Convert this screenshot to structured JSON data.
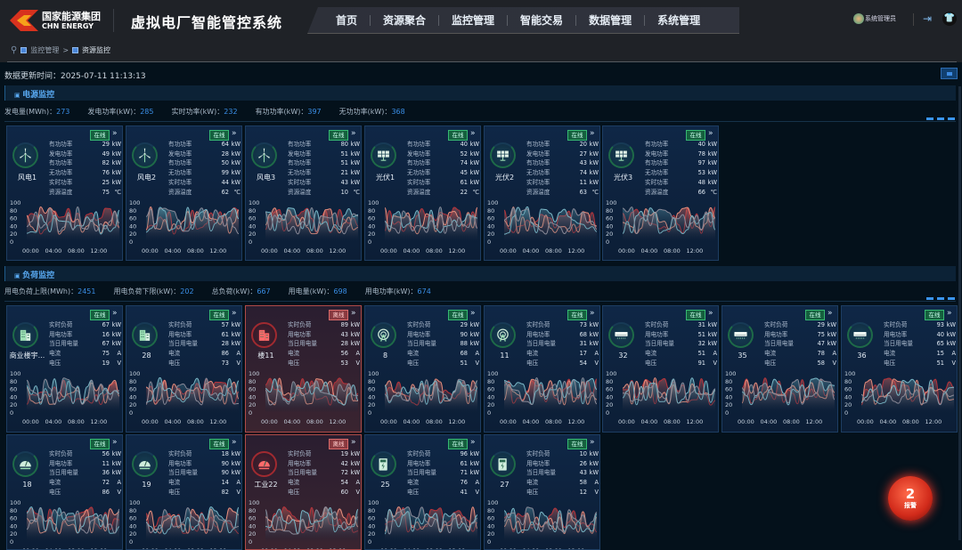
{
  "header": {
    "logo_cn": "国家能源集团",
    "logo_en": "CHN ENERGY",
    "title": "虚拟电厂智能管控系统",
    "nav": [
      "首页",
      "资源聚合",
      "监控管理",
      "智能交易",
      "数据管理",
      "系统管理"
    ],
    "user": "系统管理员"
  },
  "breadcrumb": [
    "监控管理",
    "资源监控"
  ],
  "breadcrumb_sep": ">",
  "update_time": "数据更新时间：2025-07-11 11:13:13",
  "colors": {
    "online": "#15603e",
    "offline": "#8a3a40",
    "accent": "#3a8ee6"
  },
  "chart_axis": {
    "y_ticks": [
      "100",
      "80",
      "60",
      "40",
      "20",
      "0"
    ],
    "x_ticks": [
      "00:00",
      "04:00",
      "08:00",
      "12:00"
    ]
  },
  "power": {
    "title": "电源监控",
    "summary": [
      {
        "label": "发电量(MWh)：",
        "value": "273"
      },
      {
        "label": "发电功率(kW)：",
        "value": "285"
      },
      {
        "label": "实时功率(kW)：",
        "value": "232"
      },
      {
        "label": "有功功率(kW)：",
        "value": "397"
      },
      {
        "label": "无功功率(kW)：",
        "value": "368"
      }
    ],
    "labels": [
      "有功功率",
      "发电功率",
      "有功功率",
      "无功功率",
      "实时功率",
      "资源温度"
    ],
    "units": [
      "kW",
      "kW",
      "kW",
      "kW",
      "kW",
      "℃"
    ],
    "cards": [
      {
        "name": "风电1",
        "icon": "wind-turbine",
        "status": "在线",
        "values": [
          "29",
          "49",
          "82",
          "76",
          "25",
          "75"
        ]
      },
      {
        "name": "风电2",
        "icon": "wind-turbine",
        "status": "在线",
        "values": [
          "64",
          "28",
          "50",
          "99",
          "44",
          "62"
        ]
      },
      {
        "name": "风电3",
        "icon": "wind-turbine",
        "status": "在线",
        "values": [
          "80",
          "51",
          "51",
          "21",
          "43",
          "10"
        ]
      },
      {
        "name": "光伏1",
        "icon": "solar-panel",
        "status": "在线",
        "values": [
          "40",
          "52",
          "74",
          "45",
          "61",
          "22"
        ]
      },
      {
        "name": "光伏2",
        "icon": "solar-panel",
        "status": "在线",
        "values": [
          "20",
          "27",
          "43",
          "74",
          "11",
          "63"
        ]
      },
      {
        "name": "光伏3",
        "icon": "solar-panel",
        "status": "在线",
        "values": [
          "40",
          "78",
          "97",
          "53",
          "48",
          "66"
        ]
      }
    ]
  },
  "load": {
    "title": "负荷监控",
    "summary": [
      {
        "label": "用电负荷上限(MWh)：",
        "value": "2451"
      },
      {
        "label": "用电负荷下限(kW)：",
        "value": "202"
      },
      {
        "label": "总负荷(kW)：",
        "value": "667"
      },
      {
        "label": "用电量(kW)：",
        "value": "698"
      },
      {
        "label": "用电功率(kW)：",
        "value": "674"
      }
    ],
    "labels": [
      "实时负荷",
      "用电功率",
      "当日用电量",
      "电流",
      "电压"
    ],
    "units": [
      "kW",
      "kW",
      "kW",
      "A",
      "V"
    ],
    "cards": [
      {
        "name": "商业楼宇...",
        "icon": "building",
        "status": "在线",
        "values": [
          "67",
          "16",
          "67",
          "75",
          "19"
        ]
      },
      {
        "name": "28",
        "icon": "building",
        "status": "在线",
        "values": [
          "57",
          "61",
          "28",
          "86",
          "73"
        ]
      },
      {
        "name": "楼11",
        "icon": "building",
        "status": "离线",
        "values": [
          "89",
          "43",
          "28",
          "56",
          "53"
        ]
      },
      {
        "name": "8",
        "icon": "antenna",
        "status": "在线",
        "values": [
          "29",
          "90",
          "88",
          "68",
          "51"
        ]
      },
      {
        "name": "11",
        "icon": "antenna",
        "status": "在线",
        "values": [
          "73",
          "68",
          "31",
          "17",
          "54"
        ]
      },
      {
        "name": "32",
        "icon": "air-conditioner",
        "status": "在线",
        "values": [
          "31",
          "51",
          "32",
          "51",
          "91"
        ]
      },
      {
        "name": "35",
        "icon": "air-conditioner",
        "status": "在线",
        "values": [
          "29",
          "75",
          "47",
          "78",
          "58"
        ]
      },
      {
        "name": "36",
        "icon": "air-conditioner",
        "status": "在线",
        "values": [
          "93",
          "40",
          "65",
          "15",
          "51"
        ]
      },
      {
        "name": "18",
        "icon": "meter",
        "status": "在线",
        "values": [
          "56",
          "11",
          "36",
          "72",
          "86"
        ]
      },
      {
        "name": "19",
        "icon": "meter",
        "status": "在线",
        "values": [
          "18",
          "90",
          "90",
          "14",
          "82"
        ]
      },
      {
        "name": "工业22",
        "icon": "meter",
        "status": "离线",
        "values": [
          "19",
          "42",
          "72",
          "54",
          "60"
        ]
      },
      {
        "name": "25",
        "icon": "charger",
        "status": "在线",
        "values": [
          "96",
          "61",
          "71",
          "76",
          "41"
        ]
      },
      {
        "name": "27",
        "icon": "charger",
        "status": "在线",
        "values": [
          "10",
          "26",
          "43",
          "58",
          "12"
        ]
      }
    ]
  },
  "alarm": {
    "count": "2",
    "label": "报警"
  }
}
